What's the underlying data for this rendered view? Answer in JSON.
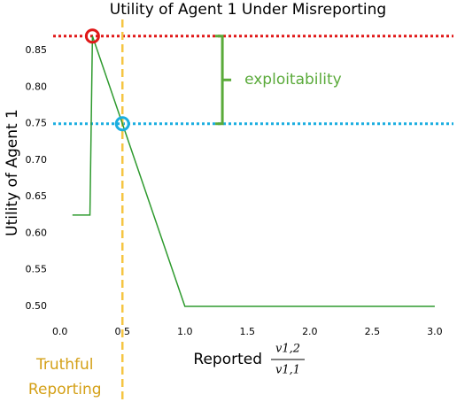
{
  "chart_data": {
    "type": "line",
    "title": "Utility of Agent 1 Under Misreporting",
    "ylabel": "Utility of Agent 1",
    "xlabel": "Reported",
    "xlabel_fraction": {
      "numerator": "v1,2",
      "denominator": "v1,1"
    },
    "x": [
      0.1,
      0.24,
      0.26,
      1.0,
      3.0
    ],
    "series": [
      {
        "name": "Utility",
        "color": "#2e9a2e",
        "values": [
          0.625,
          0.625,
          0.87,
          0.5,
          0.5
        ]
      }
    ],
    "xlim": [
      -0.09,
      3.1
    ],
    "ylim": [
      0.483,
      0.883
    ],
    "xticks": [
      {
        "value": 0,
        "label": "0.0"
      },
      0.5,
      {
        "value": 1,
        "label": "1.0"
      },
      1.5,
      {
        "value": 2,
        "label": "2.0"
      },
      2.5,
      {
        "value": 3,
        "label": "3.0"
      }
    ],
    "yticks": [
      {
        "value": 0.5,
        "label": "0.50"
      },
      0.55,
      {
        "value": 0.6,
        "label": "0.60"
      },
      0.65,
      {
        "value": 0.7,
        "label": "0.70"
      },
      0.75,
      {
        "value": 0.8,
        "label": "0.80"
      },
      0.85
    ],
    "hlines": [
      {
        "value": 0.87,
        "color": "#e01818"
      },
      {
        "value": 0.75,
        "color": "#1aaee0"
      }
    ],
    "vline": {
      "value": 0.5,
      "color": "#f5c542",
      "label_lines": [
        "Truthful",
        "Reporting"
      ],
      "label_color": "#d4a017"
    },
    "markers": [
      {
        "x": 0.26,
        "y": 0.87,
        "color": "#e01818"
      },
      {
        "x": 0.5,
        "y": 0.75,
        "color": "#1aaee0"
      }
    ],
    "bracket": {
      "x": 1.3,
      "y": [
        0.75,
        0.87
      ],
      "color": "#5aaa3a",
      "label": "exploitability"
    }
  }
}
